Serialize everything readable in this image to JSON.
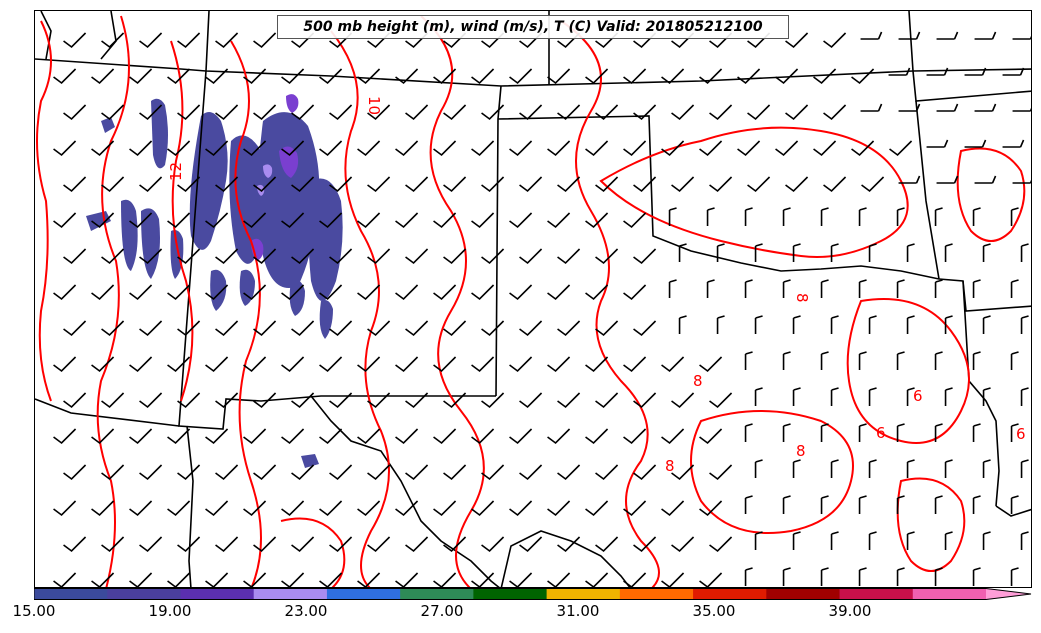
{
  "title": "500 mb height (m), wind (m/s), T (C) Valid: 201805212100",
  "colorbar": {
    "min": 15,
    "max": 43,
    "step": 2,
    "extend": "max",
    "tick_labels": [
      "15.00",
      "19.00",
      "23.00",
      "27.00",
      "31.00",
      "35.00",
      "39.00"
    ],
    "colors": [
      "#3b4a9c",
      "#4a3f9e",
      "#5b2fb0",
      "#a98cf0",
      "#2f6fe0",
      "#2e8b57",
      "#006400",
      "#f0b400",
      "#ff6a00",
      "#e01b00",
      "#a00000",
      "#c8104a",
      "#f060b0",
      "#ff9ed8"
    ]
  },
  "contour_labels": [
    "12",
    "10",
    "8",
    "8",
    "8",
    "8",
    "6",
    "6",
    "6"
  ],
  "colors": {
    "temperature_contour": "#ff0000",
    "boundary": "#000000",
    "wind_barb": "#000000"
  }
}
